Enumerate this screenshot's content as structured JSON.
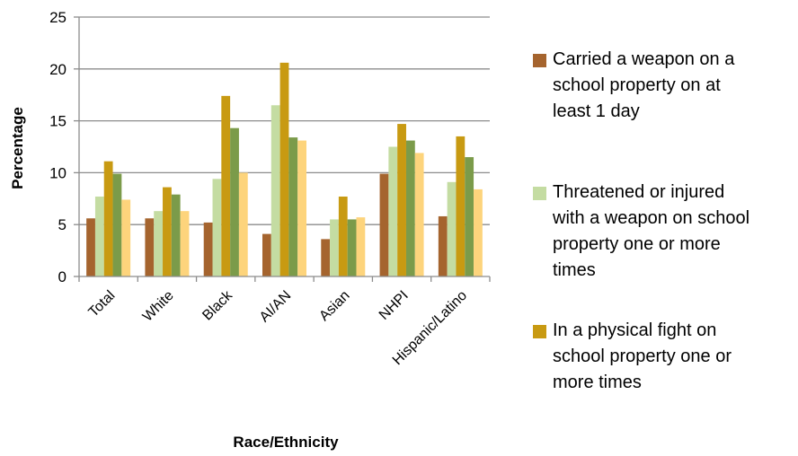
{
  "chart_data": {
    "type": "bar",
    "categories": [
      "Total",
      "White",
      "Black",
      "AI/AN",
      "Asian",
      "NHPI",
      "Hispanic/Latino"
    ],
    "series": [
      {
        "name": "Carried a weapon on a school property on at least 1 day",
        "values": [
          5.6,
          5.6,
          5.2,
          4.1,
          3.6,
          9.9,
          5.8
        ],
        "color": "#a5642e"
      },
      {
        "name": "Threatened or injured with a weapon on school property one or more times",
        "values": [
          7.7,
          6.3,
          9.4,
          16.5,
          5.5,
          12.5,
          9.1
        ],
        "color": "#c4dca2"
      },
      {
        "name": "In a physical fight on school property one or more times",
        "values": [
          11.1,
          8.6,
          17.4,
          20.6,
          7.7,
          14.7,
          13.5
        ],
        "color": "#c89a12"
      },
      {
        "name": "",
        "values": [
          9.9,
          7.9,
          14.3,
          13.4,
          5.5,
          13.1,
          11.5
        ],
        "color": "#7b9b4a"
      },
      {
        "name": "",
        "values": [
          7.4,
          6.3,
          10.0,
          13.1,
          5.7,
          11.9,
          8.4
        ],
        "color": "#fdd47c"
      }
    ],
    "ylabel": "Percentage",
    "xlabel": "Race/Ethnicity",
    "ylim": [
      0,
      25
    ],
    "yticks": [
      "0",
      "5",
      "10",
      "15",
      "20",
      "25"
    ],
    "grid": true,
    "legend_position": "right",
    "legend": [
      {
        "lines": [
          "Carried a weapon on a",
          "school property on at",
          "least 1 day"
        ],
        "color": "#a5642e"
      },
      {
        "lines": [
          "Threatened or injured",
          "with a weapon on school",
          "property one or more",
          "times"
        ],
        "color": "#c4dca2"
      },
      {
        "lines": [
          "In a physical fight on",
          "school property one or",
          "more times"
        ],
        "color": "#c89a12"
      }
    ]
  }
}
